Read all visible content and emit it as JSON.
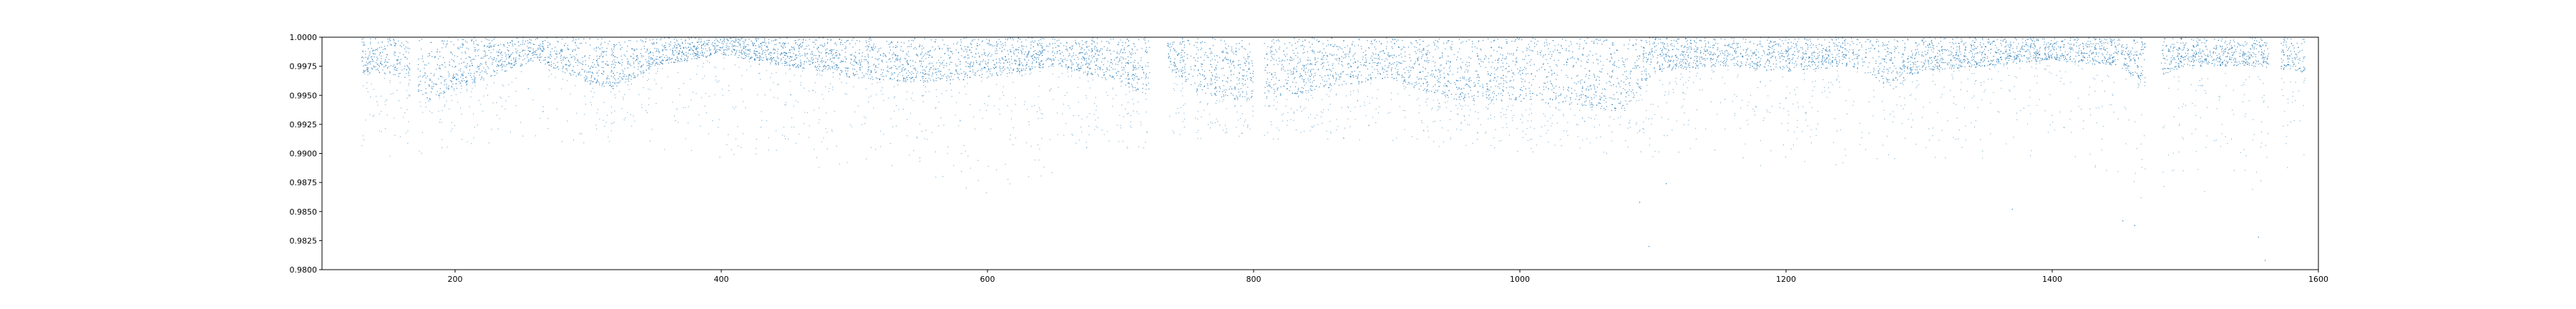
{
  "chart_data": {
    "type": "scatter",
    "title": "",
    "xlabel": "",
    "ylabel": "",
    "xlim": [
      100,
      1600
    ],
    "ylim": [
      0.98,
      1.0
    ],
    "x_ticks": [
      200,
      400,
      600,
      800,
      1000,
      1200,
      1400,
      1600
    ],
    "x_tick_labels": [
      "200",
      "400",
      "600",
      "800",
      "1000",
      "1200",
      "1400",
      "1600"
    ],
    "y_ticks": [
      0.98,
      0.9825,
      0.985,
      0.9875,
      0.99,
      0.9925,
      0.995,
      0.9975,
      1.0
    ],
    "y_tick_labels": [
      "0.9800",
      "0.9825",
      "0.9850",
      "0.9875",
      "0.9900",
      "0.9925",
      "0.9950",
      "0.9975",
      "1.0000"
    ],
    "grid": false,
    "marker_color": "#1f77b4",
    "series": [
      {
        "x_range": [
          130,
          1590
        ],
        "dense_band_floor": [
          [
            130,
            0.997
          ],
          [
            165,
            0.9965
          ],
          [
            170,
            0.9955
          ],
          [
            180,
            0.9945
          ],
          [
            200,
            0.9955
          ],
          [
            250,
            0.9975
          ],
          [
            260,
            0.998
          ],
          [
            300,
            0.996
          ],
          [
            320,
            0.9955
          ],
          [
            350,
            0.9975
          ],
          [
            400,
            0.9985
          ],
          [
            450,
            0.9975
          ],
          [
            500,
            0.9965
          ],
          [
            550,
            0.996
          ],
          [
            600,
            0.9965
          ],
          [
            650,
            0.9975
          ],
          [
            700,
            0.996
          ],
          [
            720,
            0.995
          ],
          [
            735,
            0.9975
          ],
          [
            760,
            0.995
          ],
          [
            800,
            0.9945
          ],
          [
            850,
            0.9955
          ],
          [
            900,
            0.9965
          ],
          [
            950,
            0.9945
          ],
          [
            1000,
            0.9945
          ],
          [
            1050,
            0.994
          ],
          [
            1080,
            0.9935
          ],
          [
            1100,
            0.997
          ],
          [
            1150,
            0.9975
          ],
          [
            1200,
            0.997
          ],
          [
            1250,
            0.9975
          ],
          [
            1280,
            0.9955
          ],
          [
            1300,
            0.997
          ],
          [
            1350,
            0.9975
          ],
          [
            1400,
            0.998
          ],
          [
            1450,
            0.9975
          ],
          [
            1470,
            0.996
          ],
          [
            1500,
            0.9975
          ],
          [
            1550,
            0.9975
          ],
          [
            1590,
            0.997
          ]
        ],
        "gaps": [
          [
            166,
            172
          ],
          [
            722,
            735
          ],
          [
            800,
            808
          ],
          [
            1470,
            1482
          ],
          [
            1563,
            1572
          ]
        ],
        "sparse_floor": [
          [
            130,
            0.989
          ],
          [
            200,
            0.99
          ],
          [
            300,
            0.9905
          ],
          [
            400,
            0.9895
          ],
          [
            500,
            0.988
          ],
          [
            600,
            0.9865
          ],
          [
            700,
            0.99
          ],
          [
            800,
            0.991
          ],
          [
            900,
            0.9905
          ],
          [
            1000,
            0.99
          ],
          [
            1100,
            0.9895
          ],
          [
            1200,
            0.9885
          ],
          [
            1300,
            0.989
          ],
          [
            1400,
            0.989
          ],
          [
            1480,
            0.985
          ],
          [
            1550,
            0.986
          ],
          [
            1590,
            0.989
          ]
        ],
        "outliers": [
          [
            1097,
            0.982
          ],
          [
            1453,
            0.9842
          ],
          [
            1462,
            0.9838
          ],
          [
            1555,
            0.9828
          ],
          [
            1560,
            0.9808
          ],
          [
            1090,
            0.9858
          ],
          [
            1370,
            0.9852
          ],
          [
            1110,
            0.9874
          ]
        ]
      }
    ]
  }
}
